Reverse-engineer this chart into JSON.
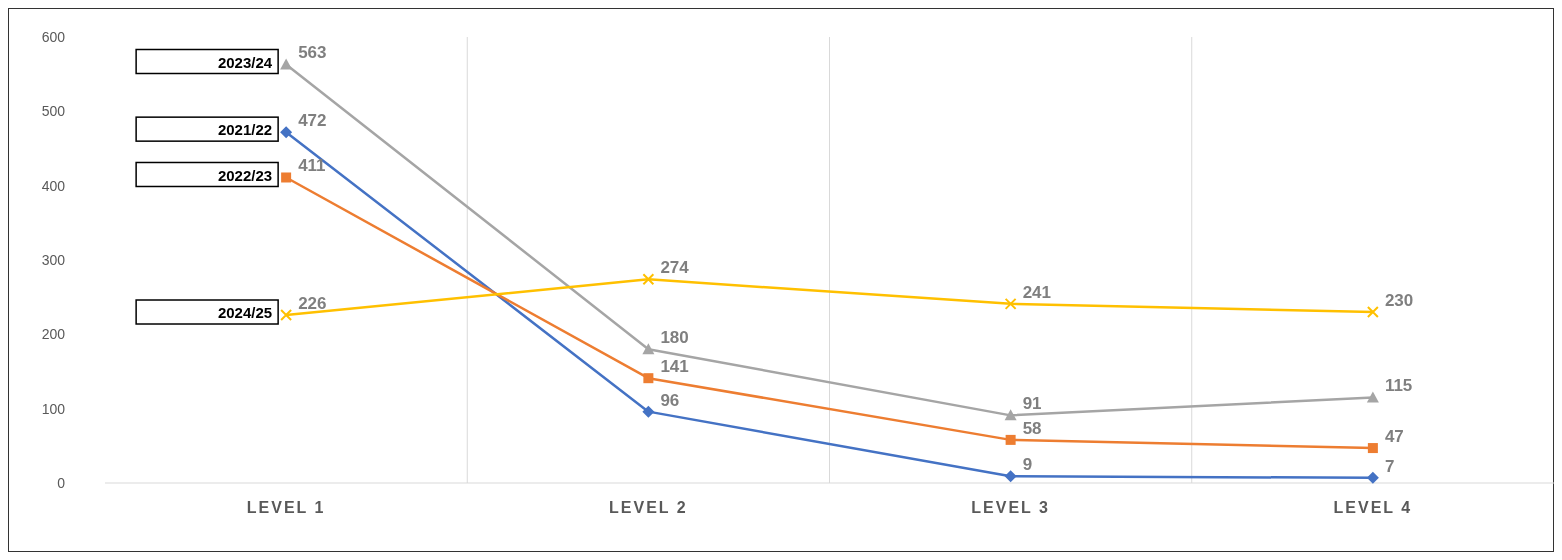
{
  "chart_data": {
    "type": "line",
    "categories": [
      "LEVEL 1",
      "LEVEL 2",
      "LEVEL 3",
      "LEVEL 4"
    ],
    "ylim": [
      0,
      600
    ],
    "yticks": [
      0,
      100,
      200,
      300,
      400,
      500,
      600
    ],
    "grid": "x",
    "data_labels": true,
    "legend": "left",
    "series": [
      {
        "name": "2021/22",
        "color": "#4472c4",
        "marker": "diamond",
        "values": [
          472,
          96,
          9,
          7
        ]
      },
      {
        "name": "2022/23",
        "color": "#ed7d31",
        "marker": "square",
        "values": [
          411,
          141,
          58,
          47
        ]
      },
      {
        "name": "2023/24",
        "color": "#a5a5a5",
        "marker": "triangle",
        "values": [
          563,
          180,
          91,
          115
        ]
      },
      {
        "name": "2024/25",
        "color": "#ffc000",
        "marker": "cross",
        "values": [
          226,
          274,
          241,
          230
        ]
      }
    ]
  }
}
